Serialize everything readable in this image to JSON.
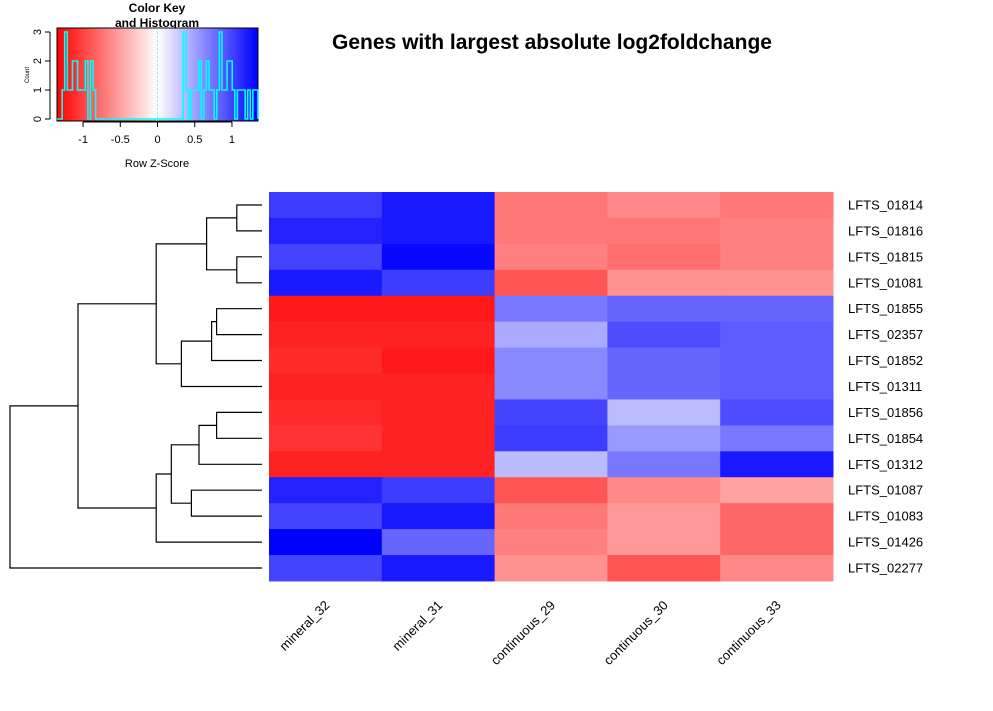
{
  "chart_data": {
    "type": "heatmap",
    "title": "Genes with largest absolute log2foldchange",
    "columns": [
      "mineral_32",
      "mineral_31",
      "continuous_29",
      "continuous_30",
      "continuous_33"
    ],
    "rows": [
      "LFTS_01814",
      "LFTS_01816",
      "LFTS_01815",
      "LFTS_01081",
      "LFTS_01855",
      "LFTS_02357",
      "LFTS_01852",
      "LFTS_01311",
      "LFTS_01856",
      "LFTS_01854",
      "LFTS_01312",
      "LFTS_01087",
      "LFTS_01083",
      "LFTS_01426",
      "LFTS_02277"
    ],
    "values": [
      [
        1.15,
        1.35,
        -0.8,
        -0.7,
        -0.8
      ],
      [
        1.3,
        1.35,
        -0.8,
        -0.8,
        -0.75
      ],
      [
        1.1,
        1.45,
        -0.75,
        -0.85,
        -0.75
      ],
      [
        1.35,
        1.15,
        -1.0,
        -0.65,
        -0.65
      ],
      [
        -1.35,
        -1.35,
        0.8,
        0.9,
        0.9
      ],
      [
        -1.3,
        -1.3,
        0.5,
        1.05,
        0.95
      ],
      [
        -1.25,
        -1.35,
        0.7,
        0.9,
        0.95
      ],
      [
        -1.3,
        -1.3,
        0.7,
        0.9,
        0.95
      ],
      [
        -1.25,
        -1.3,
        1.1,
        0.4,
        1.05
      ],
      [
        -1.2,
        -1.3,
        1.15,
        0.6,
        0.8
      ],
      [
        -1.3,
        -1.3,
        0.4,
        0.8,
        1.35
      ],
      [
        1.3,
        1.15,
        -1.0,
        -0.7,
        -0.55
      ],
      [
        1.1,
        1.35,
        -0.8,
        -0.6,
        -0.9
      ],
      [
        1.5,
        0.9,
        -0.75,
        -0.6,
        -0.9
      ],
      [
        1.1,
        1.35,
        -0.65,
        -1.0,
        -0.7
      ]
    ],
    "color_scale": {
      "low": "#ff0000",
      "mid": "#ffffff",
      "high": "#0000ff",
      "range": [
        -1.5,
        1.5
      ]
    },
    "dendrogram": {
      "merges": [
        [
          -1,
          -2,
          0.1
        ],
        [
          -3,
          -4,
          0.1
        ],
        [
          1,
          2,
          0.22
        ],
        [
          -5,
          -6,
          0.18
        ],
        [
          4,
          -7,
          0.2
        ],
        [
          5,
          -8,
          0.32
        ],
        [
          3,
          6,
          0.42
        ],
        [
          -9,
          -10,
          0.18
        ],
        [
          8,
          -11,
          0.25
        ],
        [
          -12,
          -13,
          0.28
        ],
        [
          9,
          10,
          0.36
        ],
        [
          11,
          -14,
          0.42
        ],
        [
          7,
          12,
          0.73
        ],
        [
          13,
          -15,
          1.0
        ]
      ]
    }
  },
  "color_key": {
    "title_line1": "Color Key",
    "title_line2": "and Histogram",
    "xlabel": "Row Z-Score",
    "ylabel": "Count",
    "xticks": [
      "-1",
      "-0.5",
      "0",
      "0.5",
      "1"
    ],
    "yticks": [
      "0",
      "1",
      "2",
      "3"
    ],
    "hist_color": "#00ffff",
    "hist_counts": [
      0,
      0,
      1,
      3,
      1,
      1,
      2,
      2,
      1,
      1,
      1,
      2,
      0,
      2,
      1,
      0,
      0,
      0,
      0,
      0,
      0,
      0,
      0,
      0,
      0,
      0,
      0,
      0,
      0,
      0,
      0,
      0,
      0,
      0,
      0,
      0,
      0,
      0,
      0,
      0,
      0,
      0,
      0,
      0,
      0,
      0,
      0,
      0,
      0,
      3,
      1,
      0,
      1,
      1,
      1,
      2,
      0,
      1,
      2,
      1,
      1,
      0,
      1,
      3,
      1,
      1,
      2,
      2,
      1,
      0,
      1,
      1,
      1,
      0,
      1,
      0,
      1,
      1
    ],
    "hist_range": [
      -1.35,
      1.35
    ]
  }
}
